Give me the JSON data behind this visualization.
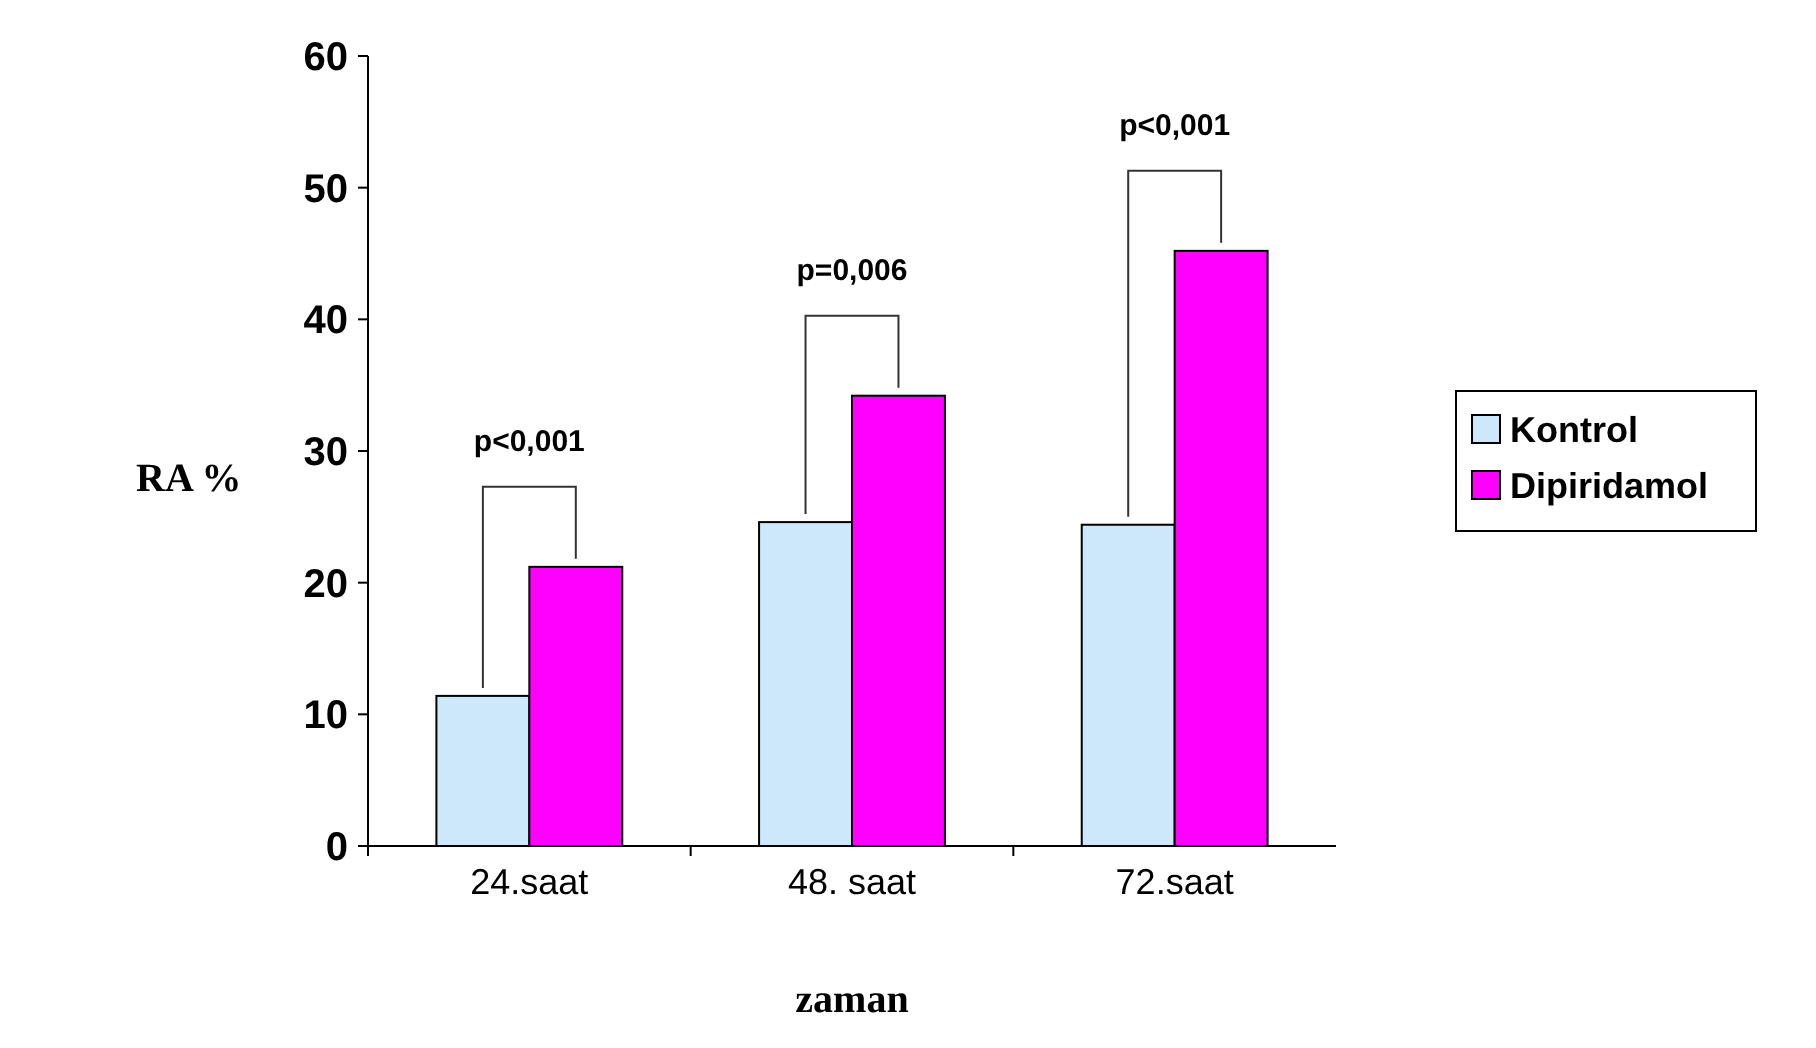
{
  "chart_data": {
    "type": "bar",
    "xlabel": "zaman",
    "ylabel": "RA %",
    "categories": [
      "24.saat",
      "48. saat",
      "72.saat"
    ],
    "series": [
      {
        "name": "Kontrol",
        "color": "#cce8fa",
        "values": [
          11.4,
          24.6,
          24.4
        ]
      },
      {
        "name": "Dipiridamol",
        "color": "#ff00ff",
        "values": [
          21.2,
          34.2,
          45.2
        ]
      }
    ],
    "ylim": [
      0,
      60
    ],
    "yticks": [
      0,
      10,
      20,
      30,
      40,
      50,
      60
    ],
    "legend": "right",
    "grid": false,
    "annotations": [
      "p<0,001",
      "p=0,006",
      "p<0,001"
    ]
  }
}
